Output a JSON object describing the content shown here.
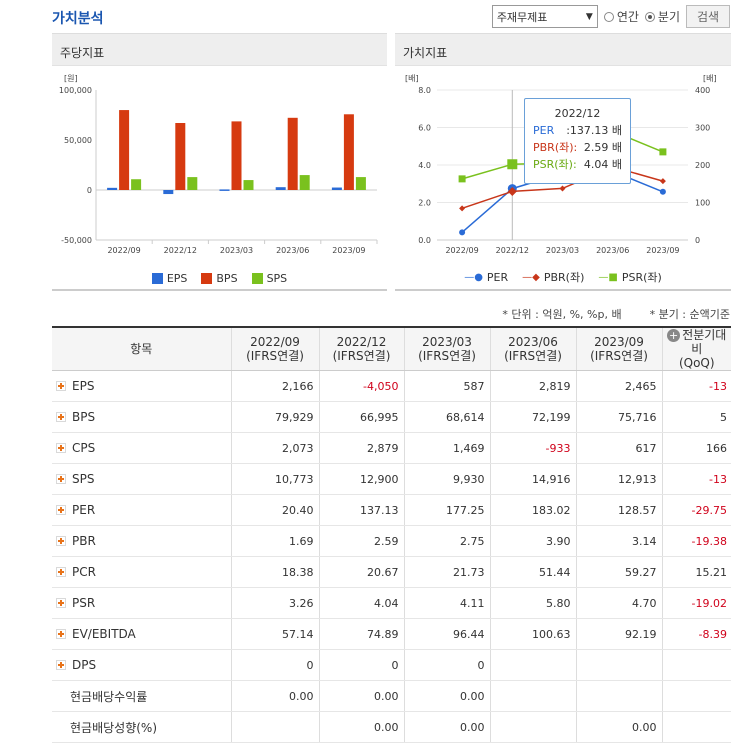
{
  "title": "가치분석",
  "controls": {
    "select": "주재무제표",
    "radio_annual": "연간",
    "radio_quarter": "분기",
    "search": "검색"
  },
  "panel1": {
    "title": "주당지표"
  },
  "panel2": {
    "title": "가치지표"
  },
  "chart_data": [
    {
      "type": "bar",
      "unit_label": "[원]",
      "categories": [
        "2022/09",
        "2022/12",
        "2023/03",
        "2023/06",
        "2023/09"
      ],
      "yticks": [
        "100,000",
        "50,000",
        "0",
        "-50,000"
      ],
      "ylim": [
        -50000,
        100000
      ],
      "series": [
        {
          "name": "EPS",
          "color": "#2a6bd6",
          "values": [
            2166,
            -4050,
            587,
            2819,
            2465
          ]
        },
        {
          "name": "BPS",
          "color": "#d63a10",
          "values": [
            79929,
            66995,
            68614,
            72199,
            75716
          ]
        },
        {
          "name": "SPS",
          "color": "#7ac11e",
          "values": [
            10773,
            12900,
            9930,
            14916,
            12913
          ]
        }
      ]
    },
    {
      "type": "line",
      "left_unit": "[배]",
      "right_unit": "[배]",
      "categories": [
        "2022/09",
        "2022/12",
        "2023/03",
        "2023/06",
        "2023/09"
      ],
      "left_ticks": [
        "8.0",
        "6.0",
        "4.0",
        "2.0",
        "0.0"
      ],
      "right_ticks": [
        "400",
        "300",
        "200",
        "100",
        "0"
      ],
      "ylim_left": [
        0,
        8
      ],
      "ylim_right": [
        0,
        400
      ],
      "series": [
        {
          "name": "PER",
          "axis": "right",
          "color": "#2a6bd6",
          "values": [
            20.4,
            137.13,
            177.25,
            183.02,
            128.57
          ]
        },
        {
          "name": "PBR(좌)",
          "axis": "left",
          "color": "#c8361a",
          "values": [
            1.69,
            2.59,
            2.75,
            3.9,
            3.14
          ]
        },
        {
          "name": "PSR(좌)",
          "axis": "left",
          "color": "#7ac11e",
          "values": [
            3.26,
            4.04,
            4.11,
            5.8,
            4.7
          ]
        }
      ],
      "tooltip": {
        "header": "2022/12",
        "rows": [
          [
            "PER",
            ":137.13 배"
          ],
          [
            "PBR(좌):",
            "2.59 배"
          ],
          [
            "PSR(좌):",
            "4.04 배"
          ]
        ]
      }
    }
  ],
  "notes": {
    "unit": "* 단위 : 억원, %, %p, 배",
    "basis": "* 분기 : 순액기준"
  },
  "table": {
    "col0": "항목",
    "cols": [
      [
        "2022/09",
        "(IFRS연결)"
      ],
      [
        "2022/12",
        "(IFRS연결)"
      ],
      [
        "2023/03",
        "(IFRS연결)"
      ],
      [
        "2023/06",
        "(IFRS연결)"
      ],
      [
        "2023/09",
        "(IFRS연결)"
      ]
    ],
    "last_col": [
      "전분기대비",
      "(QoQ)"
    ],
    "rows": [
      {
        "label": "EPS",
        "plus": true,
        "v": [
          "2,166",
          "-4,050",
          "587",
          "2,819",
          "2,465"
        ],
        "qoq": "-13"
      },
      {
        "label": "BPS",
        "plus": true,
        "v": [
          "79,929",
          "66,995",
          "68,614",
          "72,199",
          "75,716"
        ],
        "qoq": "5"
      },
      {
        "label": "CPS",
        "plus": true,
        "v": [
          "2,073",
          "2,879",
          "1,469",
          "-933",
          "617"
        ],
        "qoq": "166"
      },
      {
        "label": "SPS",
        "plus": true,
        "v": [
          "10,773",
          "12,900",
          "9,930",
          "14,916",
          "12,913"
        ],
        "qoq": "-13"
      },
      {
        "label": "PER",
        "plus": true,
        "v": [
          "20.40",
          "137.13",
          "177.25",
          "183.02",
          "128.57"
        ],
        "qoq": "-29.75"
      },
      {
        "label": "PBR",
        "plus": true,
        "v": [
          "1.69",
          "2.59",
          "2.75",
          "3.90",
          "3.14"
        ],
        "qoq": "-19.38"
      },
      {
        "label": "PCR",
        "plus": true,
        "v": [
          "18.38",
          "20.67",
          "21.73",
          "51.44",
          "59.27"
        ],
        "qoq": "15.21"
      },
      {
        "label": "PSR",
        "plus": true,
        "v": [
          "3.26",
          "4.04",
          "4.11",
          "5.80",
          "4.70"
        ],
        "qoq": "-19.02"
      },
      {
        "label": "EV/EBITDA",
        "plus": true,
        "v": [
          "57.14",
          "74.89",
          "96.44",
          "100.63",
          "92.19"
        ],
        "qoq": "-8.39"
      },
      {
        "label": "DPS",
        "plus": true,
        "v": [
          "0",
          "0",
          "0",
          "",
          ""
        ],
        "qoq": ""
      },
      {
        "label": "현금배당수익률",
        "plus": false,
        "v": [
          "0.00",
          "0.00",
          "0.00",
          "",
          ""
        ],
        "qoq": ""
      },
      {
        "label": "현금배당성향(%)",
        "plus": false,
        "v": [
          "",
          "0.00",
          "0.00",
          "",
          "0.00"
        ],
        "qoq": ""
      }
    ]
  }
}
